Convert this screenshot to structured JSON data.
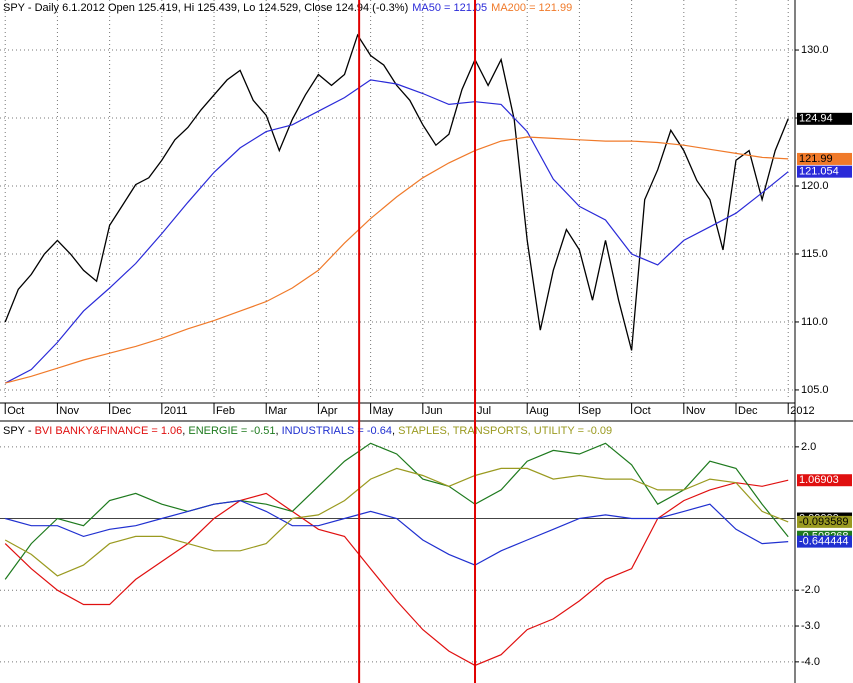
{
  "chart_data": [
    {
      "type": "line",
      "title": "SPY - Daily 6.1.2012 Open 125.419, Hi 125.439, Lo 124.529, Close 124.94 (-0.3%)",
      "xlim": [
        -0.1,
        15.13
      ],
      "xticks": [
        {
          "value": 0,
          "label": "Oct"
        },
        {
          "value": 1,
          "label": "Nov"
        },
        {
          "value": 2,
          "label": "Dec"
        },
        {
          "value": 3,
          "label": "2011"
        },
        {
          "value": 4,
          "label": "Feb"
        },
        {
          "value": 5,
          "label": "Mar"
        },
        {
          "value": 6,
          "label": "Apr"
        },
        {
          "value": 7,
          "label": "May"
        },
        {
          "value": 8,
          "label": "Jun"
        },
        {
          "value": 9,
          "label": "Jul"
        },
        {
          "value": 10,
          "label": "Aug"
        },
        {
          "value": 11,
          "label": "Sep"
        },
        {
          "value": 12,
          "label": "Oct"
        },
        {
          "value": 13,
          "label": "Nov"
        },
        {
          "value": 14,
          "label": "Dec"
        },
        {
          "value": 15,
          "label": "2012"
        }
      ],
      "ylim": [
        104.26,
        133.68
      ],
      "yticks": [
        {
          "value": 105,
          "label": "105.0"
        },
        {
          "value": 110,
          "label": "110.0"
        },
        {
          "value": 115,
          "label": "115.0"
        },
        {
          "value": 120,
          "label": "120.0"
        },
        {
          "value": 125,
          "label": "125.0"
        },
        {
          "value": 130,
          "label": "130.0"
        }
      ],
      "grid": true,
      "vlines": [
        6.78,
        9.0
      ],
      "vline_color": "#e00000",
      "x": [
        0,
        0.5,
        1,
        1.5,
        2,
        2.5,
        3,
        3.5,
        4,
        4.5,
        5,
        5.5,
        6,
        6.5,
        7,
        7.5,
        8,
        8.5,
        9,
        9.5,
        10,
        10.5,
        11,
        11.5,
        12,
        12.5,
        13,
        13.5,
        14,
        14.5,
        15
      ],
      "series": [
        {
          "color": "#000000",
          "x": [
            0,
            0.25,
            0.5,
            0.75,
            1,
            1.25,
            1.5,
            1.75,
            2,
            2.25,
            2.5,
            2.75,
            3,
            3.25,
            3.5,
            3.75,
            4,
            4.25,
            4.5,
            4.75,
            5,
            5.25,
            5.5,
            5.75,
            6,
            6.25,
            6.5,
            6.75,
            7,
            7.25,
            7.5,
            7.75,
            8,
            8.25,
            8.5,
            8.75,
            9,
            9.25,
            9.5,
            9.75,
            10,
            10.25,
            10.5,
            10.75,
            11,
            11.25,
            11.5,
            11.75,
            12,
            12.25,
            12.5,
            12.75,
            13,
            13.25,
            13.5,
            13.75,
            14,
            14.25,
            14.5,
            14.75,
            15
          ],
          "values": [
            110.0,
            112.4,
            113.5,
            115,
            116,
            115,
            113.8,
            113,
            117.1,
            118.6,
            120.1,
            120.6,
            121.9,
            123.4,
            124.3,
            125.6,
            126.7,
            127.8,
            128.5,
            126.3,
            125.2,
            122.6,
            124.9,
            126.7,
            128.2,
            127.4,
            128.2,
            131.1,
            129.6,
            128.9,
            127.4,
            126.3,
            124.5,
            123,
            123.8,
            127.1,
            129.3,
            127.4,
            129.3,
            124.9,
            116,
            109.4,
            113.8,
            116.8,
            115.3,
            111.6,
            116,
            111.6,
            107.9,
            119,
            121.2,
            124.1,
            122.6,
            120.4,
            119,
            115.3,
            121.9,
            122.6,
            119,
            122.6,
            124.94
          ]
        },
        {
          "name": "MA50 = 121.05",
          "color": "#2a2ad8",
          "values": [
            105.5,
            106.5,
            108.5,
            110.8,
            112.5,
            114.3,
            116.5,
            118.8,
            121,
            122.8,
            124,
            124.5,
            125.5,
            126.5,
            127.8,
            127.5,
            126.8,
            126,
            126.2,
            126,
            124,
            120.5,
            118.5,
            117.5,
            115,
            114.2,
            116,
            117,
            118,
            119.5,
            121.054
          ]
        },
        {
          "name": "MA200 = 121.99",
          "color": "#f07a2a",
          "values": [
            105.5,
            106,
            106.6,
            107.2,
            107.7,
            108.2,
            108.8,
            109.5,
            110.1,
            110.8,
            111.5,
            112.5,
            113.8,
            115.8,
            117.6,
            119.2,
            120.6,
            121.7,
            122.6,
            123.3,
            123.6,
            123.5,
            123.4,
            123.3,
            123.3,
            123.2,
            123,
            122.7,
            122.4,
            122.1,
            121.99
          ]
        }
      ]
    },
    {
      "type": "line",
      "title": "SPY - ",
      "separator": ", ",
      "xlim": [
        -0.1,
        15.13
      ],
      "ylim": [
        -4.59,
        2.61
      ],
      "yticks": [
        {
          "value": 2,
          "label": "2.0"
        },
        {
          "value": -2,
          "label": "-2.0"
        },
        {
          "value": -3,
          "label": "-3.0"
        },
        {
          "value": -4,
          "label": "-4.0"
        }
      ],
      "grid": true,
      "reference_line": {
        "value": 0,
        "label": "0.00000"
      },
      "x": [
        0,
        0.5,
        1,
        1.5,
        2,
        2.5,
        3,
        3.5,
        4,
        4.5,
        5,
        5.5,
        6,
        6.5,
        7,
        7.5,
        8,
        8.5,
        9,
        9.5,
        10,
        10.5,
        11,
        11.5,
        12,
        12.5,
        13,
        13.5,
        14,
        14.5,
        15
      ],
      "series": [
        {
          "name": "BVI BANKY&FINANCE = 1.06",
          "color": "#e01010",
          "values": [
            -0.7,
            -1.4,
            -2.0,
            -2.4,
            -2.4,
            -1.7,
            -1.2,
            -0.7,
            0,
            0.5,
            0.7,
            0.2,
            -0.3,
            -0.5,
            -1.4,
            -2.3,
            -3.1,
            -3.7,
            -4.1,
            -3.8,
            -3.1,
            -2.8,
            -2.3,
            -1.7,
            -1.4,
            0,
            0.5,
            0.8,
            1.0,
            0.9,
            1.06903
          ]
        },
        {
          "name": "ENERGIE = -0.51",
          "color": "#1e7a1e",
          "values": [
            -1.7,
            -0.7,
            0,
            -0.2,
            0.5,
            0.7,
            0.4,
            0.2,
            0.4,
            0.5,
            0.4,
            0.2,
            0.9,
            1.6,
            2.1,
            1.8,
            1.1,
            0.9,
            0.4,
            0.8,
            1.6,
            1.9,
            1.8,
            2.1,
            1.5,
            0.4,
            0.8,
            1.6,
            1.4,
            0.4,
            -0.508268
          ]
        },
        {
          "name": "INDUSTRIALS = -0.64",
          "color": "#2030d0",
          "values": [
            0,
            -0.2,
            -0.2,
            -0.5,
            -0.3,
            -0.2,
            0,
            0.2,
            0.4,
            0.5,
            0.2,
            -0.2,
            -0.2,
            0,
            0.2,
            0,
            -0.6,
            -1.0,
            -1.3,
            -0.9,
            -0.6,
            -0.3,
            0,
            0.1,
            0,
            0,
            0.2,
            0.4,
            -0.3,
            -0.7,
            -0.644444
          ]
        },
        {
          "name": "STAPLES, TRANSPORTS, UTILITY = -0.09",
          "color": "#9a9a20",
          "values": [
            -0.6,
            -1.0,
            -1.6,
            -1.3,
            -0.7,
            -0.5,
            -0.5,
            -0.7,
            -0.9,
            -0.9,
            -0.7,
            0,
            0.1,
            0.5,
            1.1,
            1.4,
            1.2,
            0.9,
            1.2,
            1.4,
            1.4,
            1.1,
            1.2,
            1.1,
            1.1,
            0.8,
            0.8,
            1.1,
            1.0,
            0.2,
            -0.093589
          ]
        }
      ]
    }
  ]
}
